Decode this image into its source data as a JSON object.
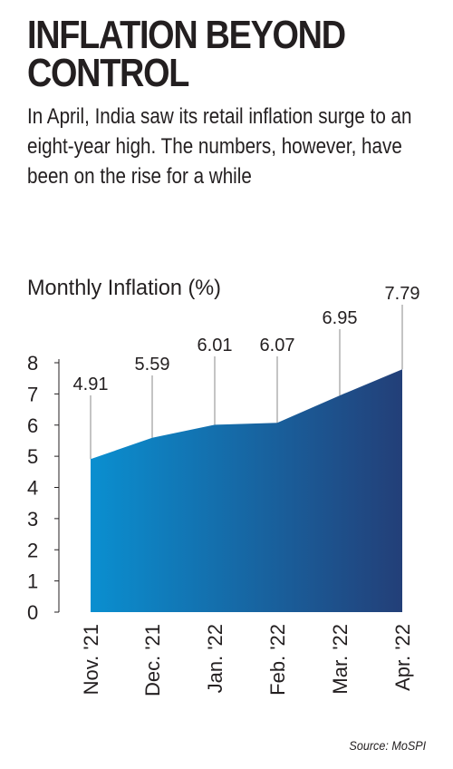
{
  "headline": "INFLATION BEYOND CONTROL",
  "deck": "In April, India saw its retail inflation surge to an eight-year high. The numbers, however, have been on the rise for a while",
  "source": "Source: MoSPI",
  "colors": {
    "area_left": "#0a8fd0",
    "area_right": "#233f78",
    "axis": "#231f20",
    "leader": "#8a8a8a"
  },
  "chart_data": {
    "type": "area",
    "title": "Monthly Inflation (%)",
    "categories": [
      "Nov. '21",
      "Dec. '21",
      "Jan. '22",
      "Feb. '22",
      "Mar. '22",
      "Apr. '22"
    ],
    "values": [
      4.91,
      5.59,
      6.01,
      6.07,
      6.95,
      7.79
    ],
    "data_labels": [
      "4.91",
      "5.59",
      "6.01",
      "6.07",
      "6.95",
      "7.79"
    ],
    "yticks": [
      "0",
      "1",
      "2",
      "3",
      "4",
      "5",
      "6",
      "7",
      "8"
    ],
    "ylim": [
      0,
      8
    ],
    "grid": false,
    "legend": "none"
  }
}
